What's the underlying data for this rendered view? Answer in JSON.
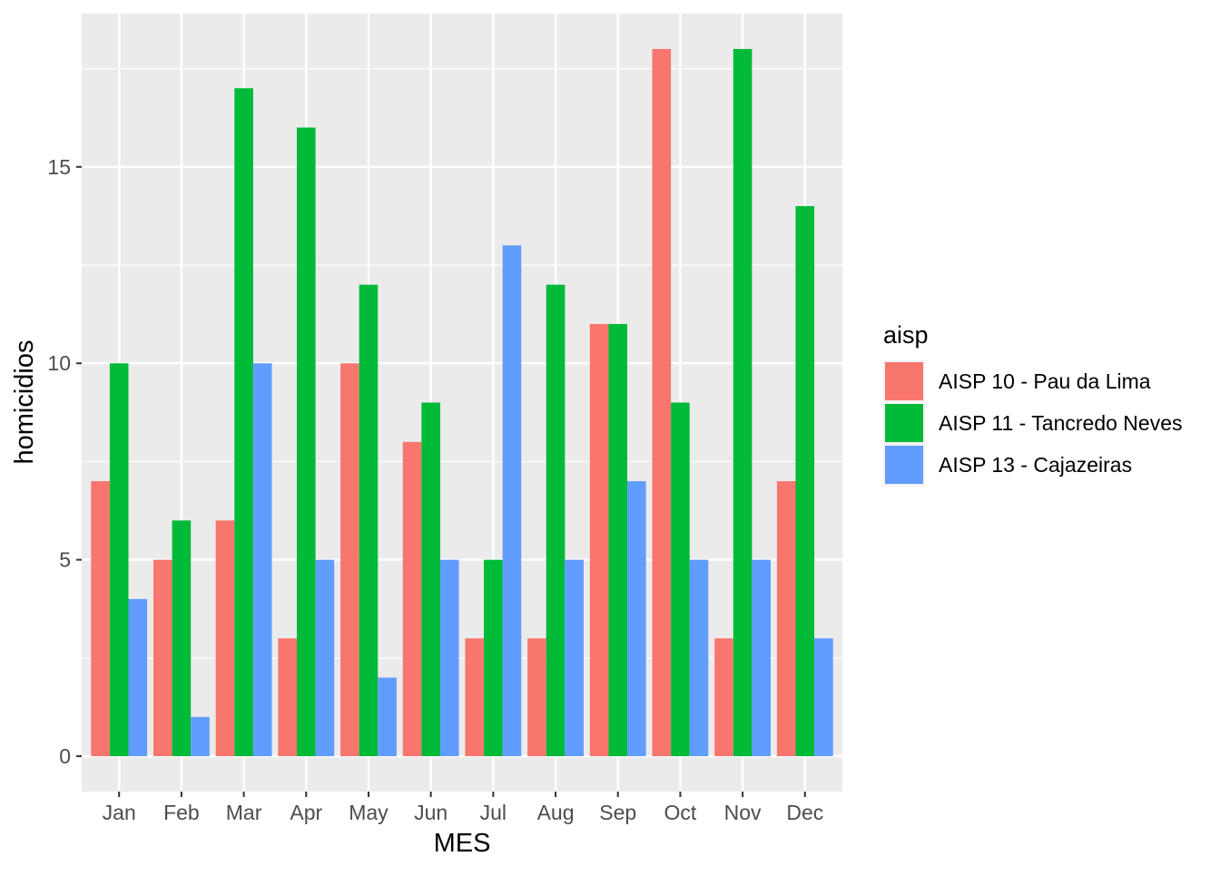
{
  "chart_data": {
    "type": "bar",
    "title": "",
    "xlabel": "MES",
    "ylabel": "homicidios",
    "categories": [
      "Jan",
      "Feb",
      "Mar",
      "Apr",
      "May",
      "Jun",
      "Jul",
      "Aug",
      "Sep",
      "Oct",
      "Nov",
      "Dec"
    ],
    "series": [
      {
        "name": "AISP 10 - Pau da Lima",
        "color": "#F8766D",
        "values": [
          7,
          5,
          6,
          3,
          10,
          8,
          3,
          3,
          11,
          18,
          3,
          7
        ]
      },
      {
        "name": "AISP 11 - Tancredo Neves",
        "color": "#00BA38",
        "values": [
          10,
          6,
          17,
          16,
          12,
          9,
          5,
          12,
          11,
          9,
          18,
          14
        ]
      },
      {
        "name": "AISP 13 - Cajazeiras",
        "color": "#619CFF",
        "values": [
          4,
          1,
          10,
          5,
          2,
          5,
          13,
          5,
          7,
          5,
          5,
          3
        ]
      }
    ],
    "yticks": [
      0,
      5,
      10,
      15
    ],
    "ytick_labels": [
      "0",
      "5",
      "10",
      "15"
    ],
    "ylim": [
      -0.9,
      18.9
    ],
    "grid": true,
    "legend": {
      "title": "aisp",
      "placement": "right"
    }
  }
}
